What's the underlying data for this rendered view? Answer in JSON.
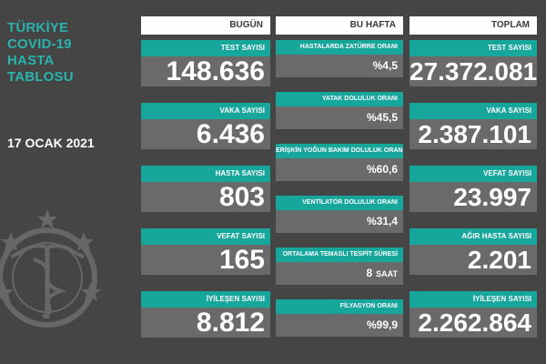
{
  "left": {
    "title_lines": [
      "TÜRKİYE",
      "COVID-19",
      "HASTA",
      "TABLOSU"
    ],
    "date": "17 OCAK 2021"
  },
  "today": {
    "header": "BUGÜN",
    "items": [
      {
        "label": "TEST SAYISI",
        "value": "148.636"
      },
      {
        "label": "VAKA SAYISI",
        "value": "6.436"
      },
      {
        "label": "HASTA SAYISI",
        "value": "803"
      },
      {
        "label": "VEFAT SAYISI",
        "value": "165"
      },
      {
        "label": "İYİLEŞEN SAYISI",
        "value": "8.812"
      }
    ]
  },
  "week": {
    "header": "BU HAFTA",
    "items": [
      {
        "label": "HASTALARDA ZATÜRRE ORANI",
        "value": "%4,5"
      },
      {
        "label": "YATAK DOLULUK ORANI",
        "value": "%45,5"
      },
      {
        "label": "ERİŞKİN YOĞUN BAKIM DOLULUK ORANI",
        "value": "%60,6"
      },
      {
        "label": "VENTİLATÖR DOLULUK ORANI",
        "value": "%31,4"
      },
      {
        "label": "ORTALAMA TEMASLI TESPİT SÜRESİ",
        "value": "8",
        "unit": "SAAT"
      },
      {
        "label": "FİLYASYON ORANI",
        "value": "%99,9"
      }
    ]
  },
  "total": {
    "header": "TOPLAM",
    "items": [
      {
        "label": "TEST SAYISI",
        "value": "27.372.081"
      },
      {
        "label": "VAKA SAYISI",
        "value": "2.387.101"
      },
      {
        "label": "VEFAT SAYISI",
        "value": "23.997"
      },
      {
        "label": "AĞIR HASTA SAYISI",
        "value": "2.201"
      },
      {
        "label": "İYİLEŞEN SAYISI",
        "value": "2.262.864"
      }
    ]
  },
  "colors": {
    "background": "#454545",
    "teal": "#17a69c",
    "title_teal": "#2ab3ad",
    "value_box": "#6a6a6a",
    "header_box": "#ffffff"
  },
  "icons": [
    "ministry-emblem-watermark"
  ]
}
